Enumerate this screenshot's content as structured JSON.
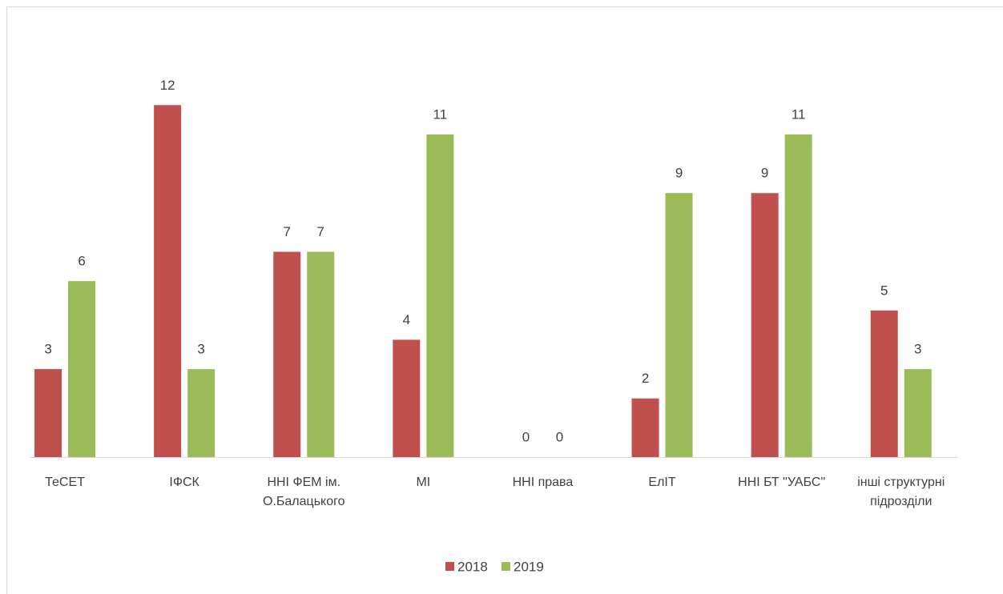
{
  "chart_data": {
    "type": "bar",
    "categories": [
      "ТеСЕТ",
      "ІФСК",
      "ННІ ФЕМ ім. О.Балацького",
      "МІ",
      "ННІ права",
      "ЕлІТ",
      "ННІ БТ \"УАБС\"",
      "інші структурні підрозділи"
    ],
    "series": [
      {
        "name": "2018",
        "color": "#c0504d",
        "values": [
          3,
          12,
          7,
          4,
          0,
          2,
          9,
          5
        ]
      },
      {
        "name": "2019",
        "color": "#9bbb59",
        "values": [
          6,
          3,
          7,
          11,
          0,
          9,
          11,
          3
        ]
      }
    ],
    "ylim": [
      0,
      14
    ],
    "grid": false,
    "legend": "bottom"
  }
}
